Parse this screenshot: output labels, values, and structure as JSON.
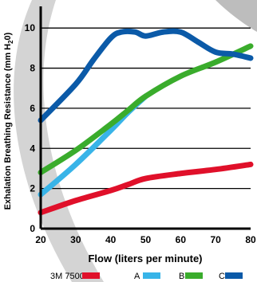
{
  "chart_data": {
    "type": "line",
    "title": "",
    "xlabel": "Flow (liters per minute)",
    "ylabel_parts": [
      "Exhalation Breathing Resistance (mm H",
      "2",
      "0)"
    ],
    "xlim": [
      20,
      80
    ],
    "ylim": [
      0,
      11
    ],
    "x_ticks": [
      20,
      30,
      40,
      50,
      60,
      70,
      80
    ],
    "y_ticks": [
      0,
      2,
      4,
      6,
      8,
      10
    ],
    "grid": "horizontal",
    "legend_position": "bottom",
    "series": [
      {
        "name": "3M 7500",
        "color": "#e0102a",
        "x": [
          20,
          30,
          40,
          45,
          50,
          60,
          70,
          80
        ],
        "y": [
          0.8,
          1.4,
          1.9,
          2.2,
          2.5,
          2.75,
          2.95,
          3.2
        ]
      },
      {
        "name": "A",
        "color": "#38b4e8",
        "x": [
          20,
          30,
          40,
          45,
          50
        ],
        "y": [
          1.7,
          3.2,
          4.9,
          5.8,
          6.6
        ]
      },
      {
        "name": "B",
        "color": "#3aac2c",
        "x": [
          20,
          30,
          40,
          45,
          50,
          60,
          70,
          80
        ],
        "y": [
          2.8,
          3.9,
          5.2,
          5.9,
          6.6,
          7.6,
          8.3,
          9.1
        ]
      },
      {
        "name": "C",
        "color": "#0b5aa8",
        "x": [
          20,
          30,
          35,
          40,
          43,
          47,
          50,
          55,
          60,
          65,
          70,
          75,
          80
        ],
        "y": [
          5.4,
          7.2,
          8.4,
          9.5,
          9.8,
          9.8,
          9.6,
          9.8,
          9.8,
          9.3,
          8.8,
          8.7,
          8.5
        ]
      }
    ]
  },
  "colors": {
    "background_ring": "#c9c9c9",
    "grid": "#000000",
    "axis": "#000000"
  }
}
